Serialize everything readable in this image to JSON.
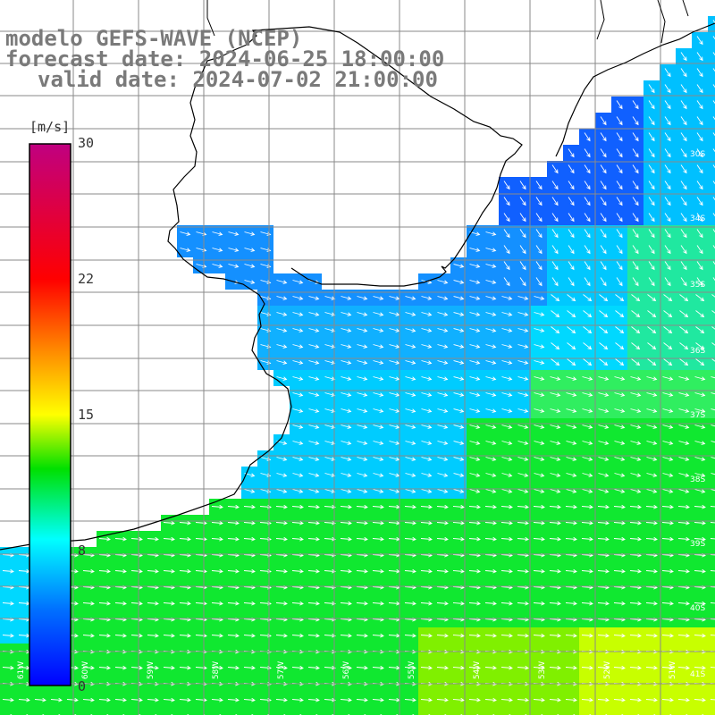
{
  "title": {
    "model": "modelo GEFS-WAVE (NCEP)",
    "forecast": "forecast date: 2024-06-25 18:00:00",
    "valid": "valid date: 2024-07-02 21:00:00"
  },
  "colorbar": {
    "unit": "[m/s]",
    "ticks": [
      "30",
      "22",
      "15",
      "8",
      "0"
    ],
    "tick_values": [
      30,
      22,
      15,
      8,
      0
    ],
    "vmin": 0,
    "vmax": 30,
    "colors": [
      "#0000ff",
      "#00aaff",
      "#00ffff",
      "#00dd00",
      "#aaff00",
      "#ffff00",
      "#ff8800",
      "#ff0000",
      "#cc0077"
    ]
  },
  "grid_labels": {
    "longitudes": [
      "61W",
      "60W",
      "59W",
      "58W",
      "57W",
      "56W",
      "55W",
      "54W",
      "53W",
      "52W",
      "51W"
    ],
    "latitudes": [
      "30S",
      "34S",
      "35S",
      "36S",
      "37S",
      "38S",
      "39S",
      "40S",
      "41S"
    ]
  },
  "field": {
    "description_colors": {
      "deep_blue": "#1060ff",
      "blue": "#1e90ff",
      "cyan": "#00d8ff",
      "green": "#10e830",
      "yellow_green": "#c8ff00"
    }
  }
}
